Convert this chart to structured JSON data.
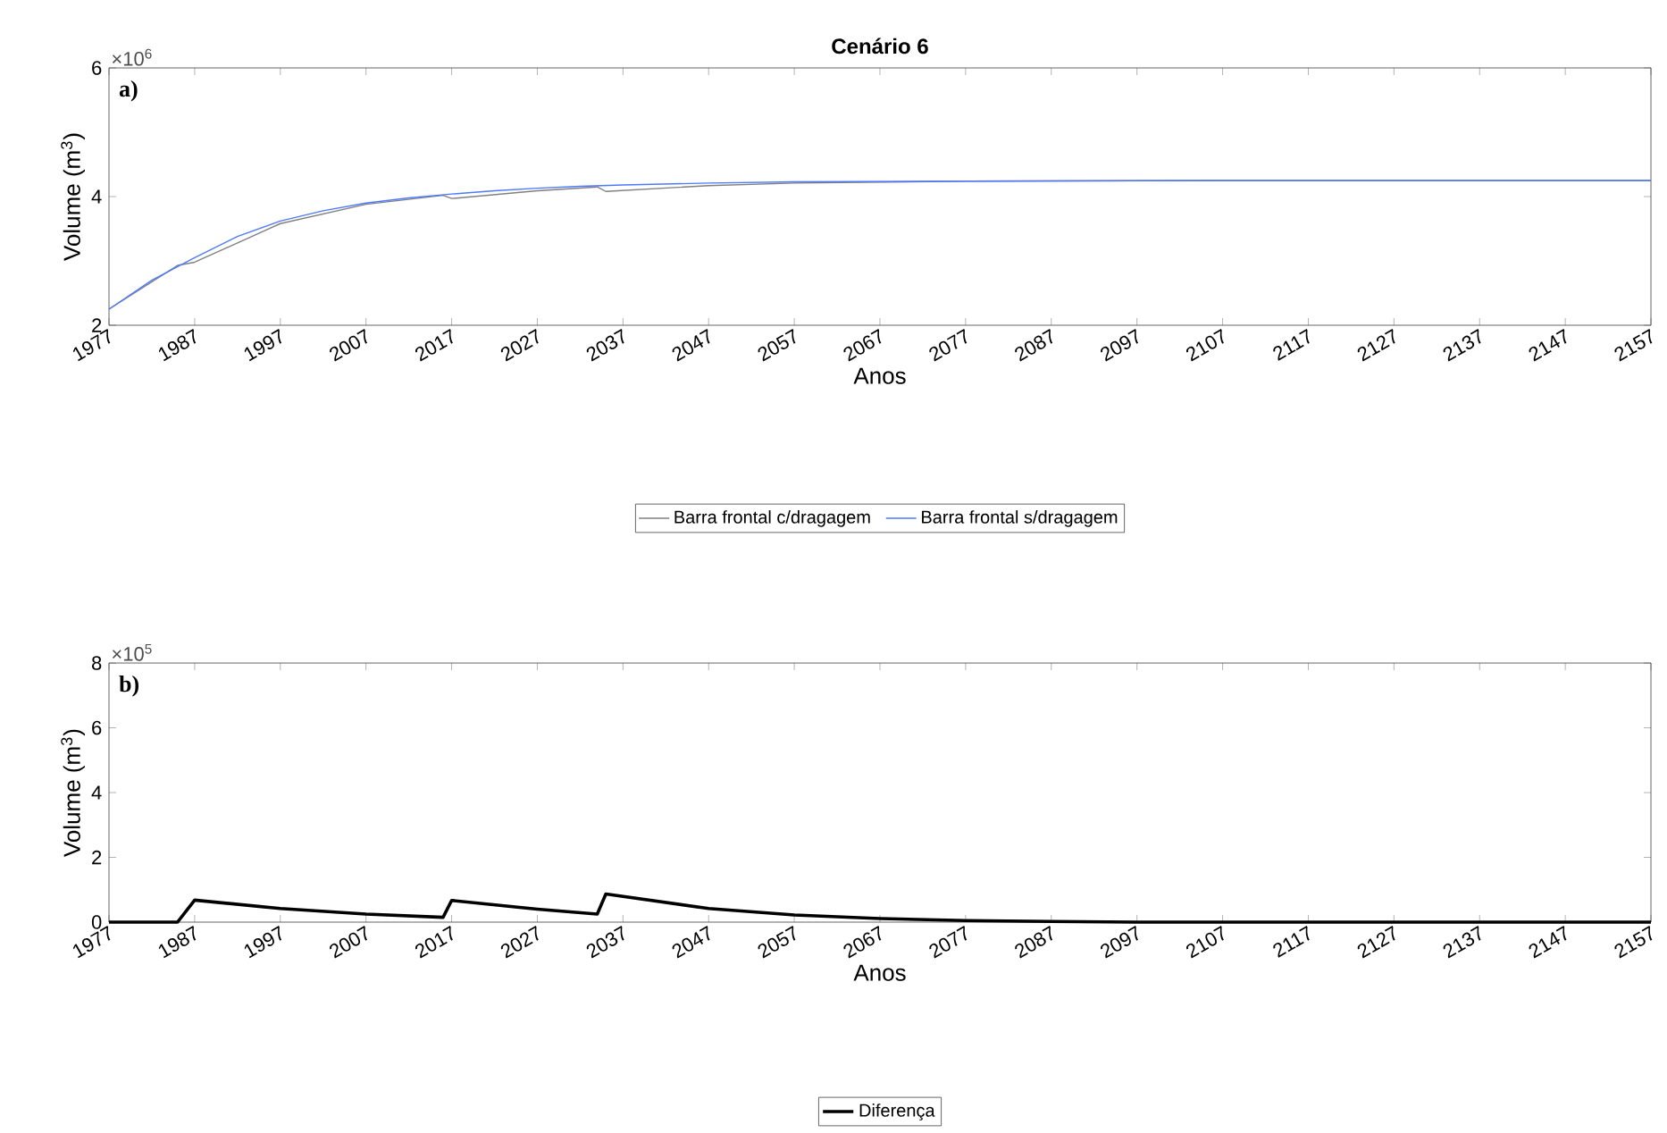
{
  "chart_data": [
    {
      "type": "line",
      "title": "Cenário 6",
      "xlabel": "Anos",
      "ylabel": "Volume (m$^{3}$)",
      "annotations": [
        "×10$^{6}$",
        "a)"
      ],
      "xlim": [
        1977,
        2157
      ],
      "xticks": [
        1977,
        1987,
        1997,
        2007,
        2017,
        2027,
        2037,
        2047,
        2057,
        2067,
        2077,
        2087,
        2097,
        2107,
        2117,
        2127,
        2137,
        2147,
        2157
      ],
      "ylim": [
        2,
        6
      ],
      "yticks": [
        2,
        4,
        6
      ],
      "legend": "bottom",
      "marker": "none",
      "series": [
        {
          "name": "Barra frontal c/dragagem",
          "color": "#808080",
          "x": [
            1977,
            1985,
            1987,
            1997,
            2007,
            2016,
            2017,
            2027,
            2034,
            2035,
            2047,
            2057,
            2077,
            2107,
            2157
          ],
          "values": [
            2.25,
            2.93,
            2.98,
            3.58,
            3.88,
            4.02,
            3.97,
            4.09,
            4.15,
            4.08,
            4.17,
            4.21,
            4.24,
            4.25,
            4.25
          ]
        },
        {
          "name": "Barra frontal s/dragagem",
          "color": "#4d79ff",
          "x": [
            1977,
            1982,
            1987,
            1992,
            1997,
            2002,
            2007,
            2012,
            2017,
            2022,
            2027,
            2032,
            2037,
            2047,
            2057,
            2077,
            2107,
            2157
          ],
          "values": [
            2.25,
            2.7,
            3.05,
            3.38,
            3.62,
            3.78,
            3.9,
            3.98,
            4.04,
            4.09,
            4.13,
            4.16,
            4.18,
            4.21,
            4.23,
            4.24,
            4.25,
            4.25
          ]
        }
      ]
    },
    {
      "type": "line",
      "xlabel": "Anos",
      "ylabel": "Volume (m$^{3}$)",
      "annotations": [
        "×10$^{5}$",
        "b)"
      ],
      "xlim": [
        1977,
        2157
      ],
      "xticks": [
        1977,
        1987,
        1997,
        2007,
        2017,
        2027,
        2037,
        2047,
        2057,
        2067,
        2077,
        2087,
        2097,
        2107,
        2117,
        2127,
        2137,
        2147,
        2157
      ],
      "ylim": [
        0,
        8
      ],
      "yticks": [
        0,
        2,
        4,
        6,
        8
      ],
      "legend": "bottom",
      "marker": "none",
      "series": [
        {
          "name": "Diferença",
          "color": "#000000",
          "x": [
            1977,
            1985,
            1987,
            1997,
            2007,
            2016,
            2017,
            2027,
            2034,
            2035,
            2047,
            2057,
            2067,
            2077,
            2087,
            2097,
            2157
          ],
          "values": [
            0,
            0,
            0.68,
            0.42,
            0.25,
            0.15,
            0.67,
            0.4,
            0.25,
            0.87,
            0.42,
            0.22,
            0.11,
            0.05,
            0.02,
            0,
            0
          ]
        }
      ]
    }
  ]
}
